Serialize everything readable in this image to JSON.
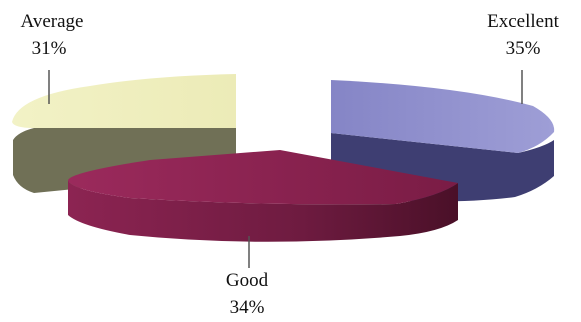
{
  "chart_data": {
    "type": "pie",
    "style": "3d-exploded",
    "slices": [
      {
        "label": "Excellent",
        "value": 35,
        "value_label": "35%",
        "color": "#8f8fc9",
        "side_color": "#3e3e72"
      },
      {
        "label": "Good",
        "value": 34,
        "value_label": "34%",
        "color": "#8c2050",
        "side_color": "#6b1a3c"
      },
      {
        "label": "Average",
        "value": 31,
        "value_label": "31%",
        "color": "#f1f1c2",
        "side_color": "#727258"
      }
    ]
  }
}
